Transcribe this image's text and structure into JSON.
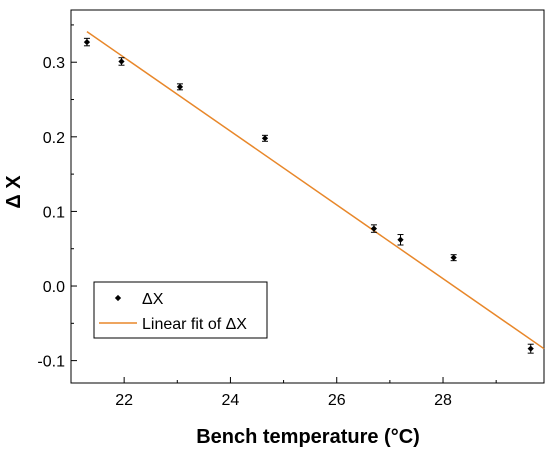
{
  "chart_data": {
    "type": "scatter",
    "title": "",
    "xlabel": "Bench temperature (°C)",
    "ylabel": "Δ X",
    "xlim": [
      21.0,
      29.9
    ],
    "ylim": [
      -0.13,
      0.37
    ],
    "x_ticks": [
      22,
      24,
      26,
      28
    ],
    "x_tick_labels": [
      "22",
      "24",
      "26",
      "28"
    ],
    "y_ticks": [
      -0.1,
      0.0,
      0.1,
      0.2,
      0.3
    ],
    "y_tick_labels": [
      "-0.1",
      "0.0",
      "0.1",
      "0.2",
      "0.3"
    ],
    "grid": false,
    "legend_position": "bottom-left",
    "series": [
      {
        "name": "ΔX",
        "type": "scatter",
        "color": "#000000",
        "x": [
          21.3,
          21.95,
          23.05,
          24.65,
          26.7,
          27.2,
          28.2,
          29.65
        ],
        "y": [
          0.327,
          0.301,
          0.267,
          0.198,
          0.077,
          0.062,
          0.038,
          -0.084
        ],
        "error": [
          0.005,
          0.005,
          0.004,
          0.004,
          0.005,
          0.007,
          0.004,
          0.006
        ]
      },
      {
        "name": "Linear fit of ΔX",
        "type": "line",
        "color": "#e8872a",
        "x": [
          21.3,
          29.9
        ],
        "y": [
          0.341,
          -0.084
        ]
      }
    ]
  }
}
